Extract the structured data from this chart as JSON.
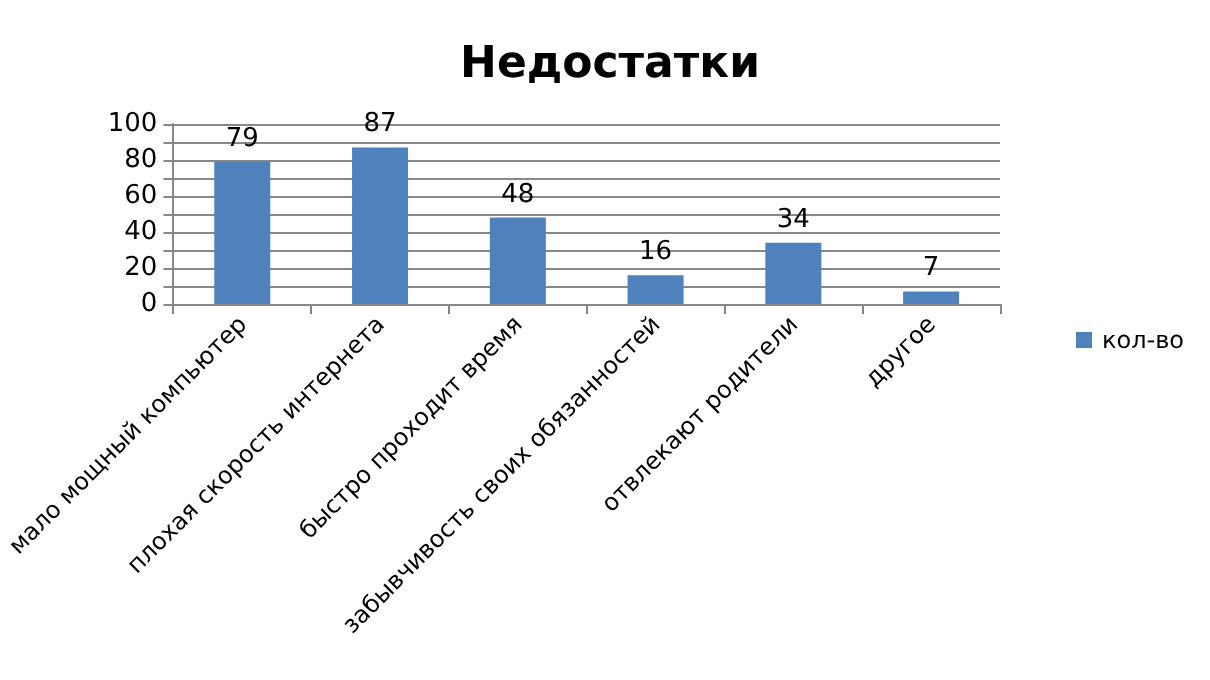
{
  "chart_data": {
    "type": "bar",
    "title": "Недостатки",
    "categories": [
      "мало мощный компьютер",
      "плохая скорость интернета",
      "быстро проходит время",
      "забывчивость своих обязанностей",
      "отвлекают родители",
      "другое"
    ],
    "series": [
      {
        "name": "кол-во",
        "color": "#4f81bd",
        "values": [
          79,
          87,
          48,
          16,
          34,
          7
        ]
      }
    ],
    "ylim": [
      0,
      100
    ],
    "yticks": [
      0,
      {
        "value": 10,
        "label": null
      },
      20,
      {
        "value": 30,
        "label": null
      },
      40,
      {
        "value": 50,
        "label": null
      },
      60,
      {
        "value": 70,
        "label": null
      },
      80,
      {
        "value": 90,
        "label": null
      },
      100
    ],
    "grid": "y",
    "legend": "right",
    "data_labels": true
  }
}
